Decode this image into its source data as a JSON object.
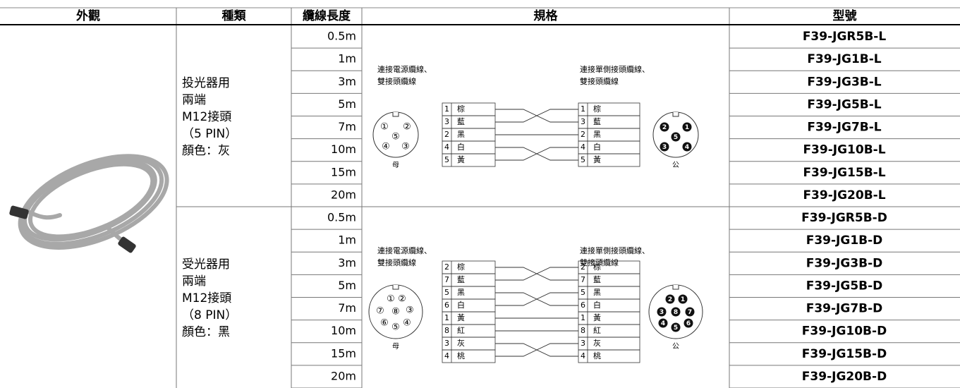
{
  "header": {
    "columns": [
      "外觀",
      "種類",
      "纜線長度",
      "規格",
      "型號"
    ]
  },
  "groups": [
    {
      "kind": [
        "投光器用",
        "兩端",
        "M12接頭",
        "（5 PIN）",
        "顏色：灰"
      ],
      "lengths": [
        "0.5m",
        "1m",
        "3m",
        "5m",
        "7m",
        "10m",
        "15m",
        "20m"
      ],
      "models": [
        "F39-JGR5B-L",
        "F39-JG1B-L",
        "F39-JG3B-L",
        "F39-JG5B-L",
        "F39-JG7B-L",
        "F39-JG10B-L",
        "F39-JG15B-L",
        "F39-JG20B-L"
      ],
      "spec": {
        "left_label": [
          "連接電源纜線、",
          "雙接頭纜線"
        ],
        "right_label": [
          "連接單側接頭纜線、",
          "雙接頭纜線"
        ],
        "wires": [
          {
            "pin": "1",
            "color": "棕"
          },
          {
            "pin": "3",
            "color": "藍"
          },
          {
            "pin": "2",
            "color": "黑"
          },
          {
            "pin": "4",
            "color": "白"
          },
          {
            "pin": "5",
            "color": "黃"
          }
        ],
        "female": "母",
        "male": "公",
        "female_pins": [
          "①",
          "②",
          "⑤",
          "④",
          "③"
        ],
        "male_pins": [
          "2",
          "1",
          "5",
          "3",
          "4"
        ]
      }
    },
    {
      "kind": [
        "受光器用",
        "兩端",
        "M12接頭",
        "（8 PIN）",
        "顏色：黑"
      ],
      "lengths": [
        "0.5m",
        "1m",
        "3m",
        "5m",
        "7m",
        "10m",
        "15m",
        "20m"
      ],
      "models": [
        "F39-JGR5B-D",
        "F39-JG1B-D",
        "F39-JG3B-D",
        "F39-JG5B-D",
        "F39-JG7B-D",
        "F39-JG10B-D",
        "F39-JG15B-D",
        "F39-JG20B-D"
      ],
      "spec": {
        "left_label": [
          "連接電源纜線、",
          "雙接頭纜線"
        ],
        "right_label": [
          "連接單側接頭纜線、",
          "雙接頭纜線"
        ],
        "wires": [
          {
            "pin": "2",
            "color": "棕"
          },
          {
            "pin": "7",
            "color": "藍"
          },
          {
            "pin": "5",
            "color": "黑"
          },
          {
            "pin": "6",
            "color": "白"
          },
          {
            "pin": "1",
            "color": "黃"
          },
          {
            "pin": "8",
            "color": "紅"
          },
          {
            "pin": "3",
            "color": "灰"
          },
          {
            "pin": "4",
            "color": "桃"
          }
        ],
        "female": "母",
        "male": "公",
        "female_pins": [
          "①",
          "②",
          "⑦",
          "⑧",
          "③",
          "⑥",
          "⑤",
          "④"
        ],
        "male_pins": [
          "2",
          "1",
          "3",
          "8",
          "7",
          "4",
          "5",
          "6"
        ]
      }
    }
  ]
}
